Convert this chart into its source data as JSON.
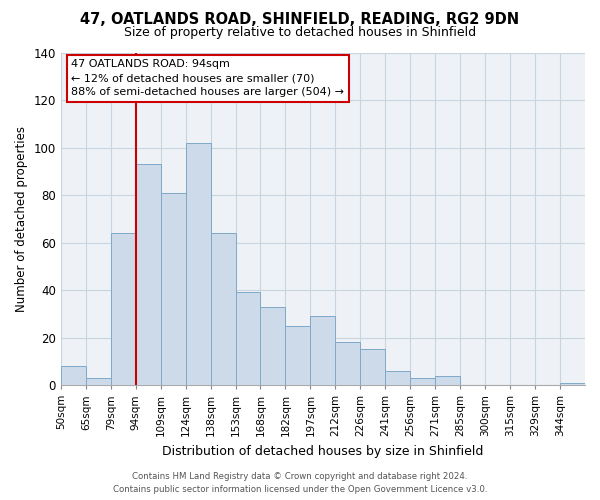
{
  "title1": "47, OATLANDS ROAD, SHINFIELD, READING, RG2 9DN",
  "title2": "Size of property relative to detached houses in Shinfield",
  "xlabel": "Distribution of detached houses by size in Shinfield",
  "ylabel": "Number of detached properties",
  "categories": [
    "50sqm",
    "65sqm",
    "79sqm",
    "94sqm",
    "109sqm",
    "124sqm",
    "138sqm",
    "153sqm",
    "168sqm",
    "182sqm",
    "197sqm",
    "212sqm",
    "226sqm",
    "241sqm",
    "256sqm",
    "271sqm",
    "285sqm",
    "300sqm",
    "315sqm",
    "329sqm",
    "344sqm"
  ],
  "values": [
    8,
    3,
    64,
    93,
    81,
    102,
    64,
    39,
    33,
    25,
    29,
    18,
    15,
    6,
    3,
    4,
    0,
    0,
    0,
    0,
    1
  ],
  "bar_color": "#cddaea",
  "bar_edge_color": "#7fa8c8",
  "vline_x_index": 3,
  "vline_color": "#cc0000",
  "ylim": [
    0,
    140
  ],
  "yticks": [
    0,
    20,
    40,
    60,
    80,
    100,
    120,
    140
  ],
  "annotation_text_line1": "47 OATLANDS ROAD: 94sqm",
  "annotation_text_line2": "← 12% of detached houses are smaller (70)",
  "annotation_text_line3": "88% of semi-detached houses are larger (504) →",
  "footer1": "Contains HM Land Registry data © Crown copyright and database right 2024.",
  "footer2": "Contains public sector information licensed under the Open Government Licence v3.0.",
  "grid_color": "#c8d4e0",
  "background_color": "#eef2f7",
  "title1_fontsize": 10.5,
  "title2_fontsize": 9,
  "ylabel_fontsize": 8.5,
  "xlabel_fontsize": 9,
  "tick_fontsize": 7.5,
  "ytick_fontsize": 8.5,
  "annot_fontsize": 8,
  "footer_fontsize": 6.2
}
